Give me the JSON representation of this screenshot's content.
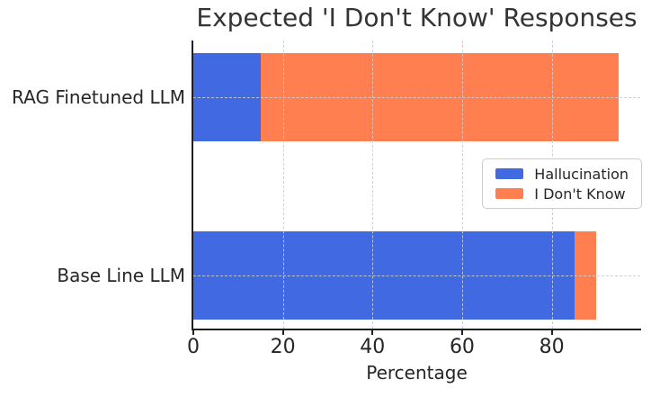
{
  "chart_data": {
    "type": "bar",
    "orientation": "horizontal",
    "stacked": true,
    "title": "Expected 'I Don't Know' Responses",
    "xlabel": "Percentage",
    "categories": [
      "RAG Finetuned LLM",
      "Base Line LLM"
    ],
    "series": [
      {
        "name": "Hallucination",
        "color": "#4169E1",
        "values": [
          15,
          85
        ]
      },
      {
        "name": "I Don't Know",
        "color": "#FF7F50",
        "values": [
          80,
          5
        ]
      }
    ],
    "totals": [
      95,
      90
    ],
    "xlim": [
      0,
      99.75
    ],
    "xticks": [
      0,
      20,
      40,
      60,
      80
    ],
    "grid": true,
    "grid_style": "dashed",
    "legend_position": "center right",
    "style_colors": {
      "axis": "#1f1f1f",
      "grid": "#cccccc",
      "text": "#262626",
      "background": "#ffffff"
    }
  }
}
